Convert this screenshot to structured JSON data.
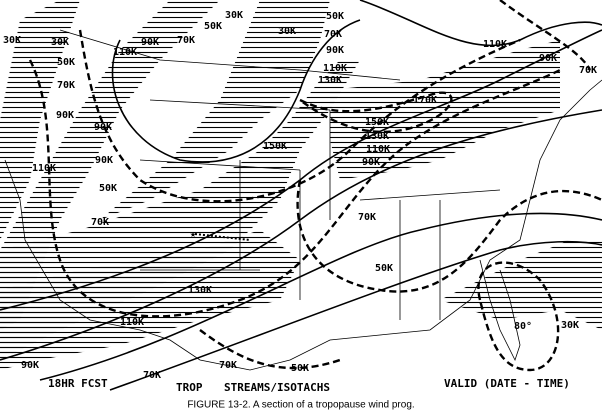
{
  "labels": [
    "30K",
    "50K",
    "30K",
    "30K",
    "50K",
    "70K",
    "90K",
    "110K",
    "70K",
    "90K",
    "90K",
    "110K",
    "90K",
    "50K",
    "70K",
    "50K",
    "30K",
    "70K",
    "90K",
    "110K",
    "130K",
    "110K",
    "90K",
    "70K",
    "170K",
    "150K",
    "130K",
    "110K",
    "90K",
    "150K",
    "70K",
    "50K",
    "130K",
    "110K",
    "90K",
    "70K",
    "70K",
    "50K",
    "30K",
    "80°"
  ],
  "footer": {
    "forecast": "18HR FCST",
    "product": "TROP",
    "fields": "STREAMS/ISOTACHS",
    "valid": "VALID (DATE - TIME)"
  },
  "caption": "FIGURE 13-2.  A section of a tropopause wind prog."
}
